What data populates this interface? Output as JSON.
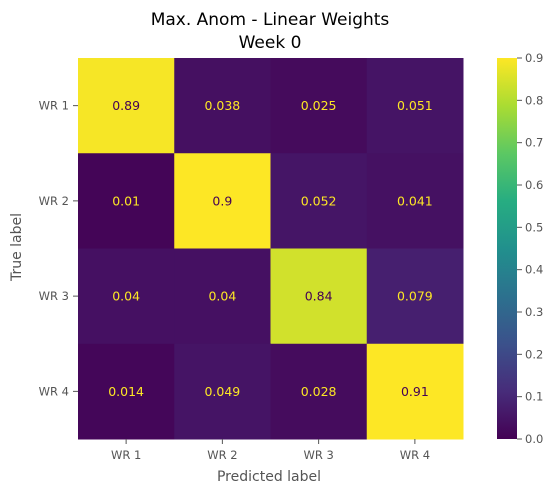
{
  "chart_data": {
    "type": "heatmap",
    "title": "Max. Anom - Linear Weights",
    "subtitle": "Week 0",
    "xlabel": "Predicted label",
    "ylabel": "True label",
    "x_categories": [
      "WR 1",
      "WR 2",
      "WR 3",
      "WR 4"
    ],
    "y_categories": [
      "WR 1",
      "WR 2",
      "WR 3",
      "WR 4"
    ],
    "values": [
      [
        0.89,
        0.038,
        0.025,
        0.051
      ],
      [
        0.01,
        0.9,
        0.052,
        0.041
      ],
      [
        0.04,
        0.04,
        0.84,
        0.079
      ],
      [
        0.014,
        0.049,
        0.028,
        0.91
      ]
    ],
    "cell_labels": [
      [
        "0.89",
        "0.038",
        "0.025",
        "0.051"
      ],
      [
        "0.01",
        "0.9",
        "0.052",
        "0.041"
      ],
      [
        "0.04",
        "0.04",
        "0.84",
        "0.079"
      ],
      [
        "0.014",
        "0.049",
        "0.028",
        "0.91"
      ]
    ],
    "colormap": "viridis",
    "colorbar": {
      "range": [
        0.0,
        0.9
      ],
      "ticks": [
        0.0,
        0.1,
        0.2,
        0.3,
        0.4,
        0.5,
        0.6,
        0.7,
        0.8,
        0.9
      ],
      "tick_labels": [
        "0.0",
        "0.1",
        "0.2",
        "0.3",
        "0.4",
        "0.5",
        "0.6",
        "0.7",
        "0.8",
        "0.9"
      ]
    },
    "grid": false,
    "colors": {
      "label_on_dark": "#fde725",
      "label_on_light": "#440154"
    }
  }
}
